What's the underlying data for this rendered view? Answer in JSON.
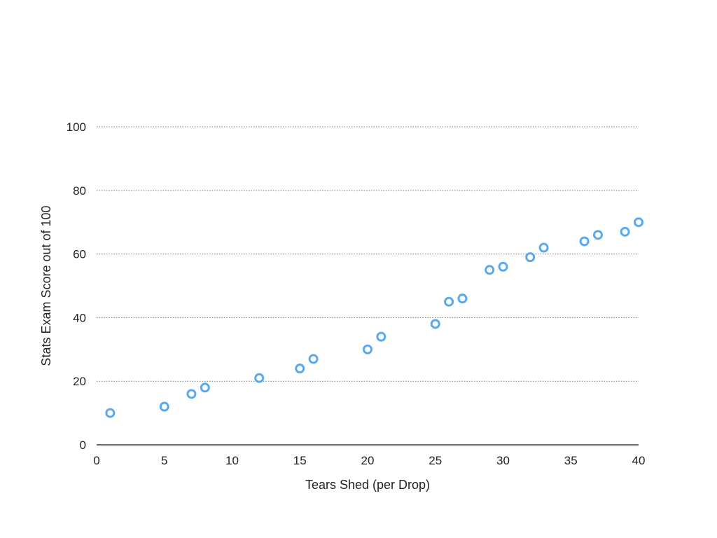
{
  "chart_data": {
    "type": "scatter",
    "title": "",
    "xlabel": "Tears Shed (per Drop)",
    "ylabel": "Stats Exam Score out of 100",
    "xlim": [
      0,
      40
    ],
    "ylim": [
      0,
      100
    ],
    "xticks": [
      0,
      5,
      10,
      15,
      20,
      25,
      30,
      35,
      40
    ],
    "yticks": [
      0,
      20,
      40,
      60,
      80,
      100
    ],
    "grid": "horizontal-dotted",
    "legend": "none",
    "marker_color": "#5aa9ee",
    "series": [
      {
        "points": [
          {
            "x": 1,
            "y": 10
          },
          {
            "x": 5,
            "y": 12
          },
          {
            "x": 7,
            "y": 16
          },
          {
            "x": 8,
            "y": 18
          },
          {
            "x": 12,
            "y": 21
          },
          {
            "x": 15,
            "y": 24
          },
          {
            "x": 16,
            "y": 27
          },
          {
            "x": 20,
            "y": 30
          },
          {
            "x": 21,
            "y": 34
          },
          {
            "x": 25,
            "y": 38
          },
          {
            "x": 26,
            "y": 45
          },
          {
            "x": 27,
            "y": 46
          },
          {
            "x": 29,
            "y": 55
          },
          {
            "x": 30,
            "y": 56
          },
          {
            "x": 32,
            "y": 59
          },
          {
            "x": 33,
            "y": 62
          },
          {
            "x": 36,
            "y": 64
          },
          {
            "x": 37,
            "y": 66
          },
          {
            "x": 39,
            "y": 67
          },
          {
            "x": 40,
            "y": 70
          }
        ]
      }
    ]
  }
}
